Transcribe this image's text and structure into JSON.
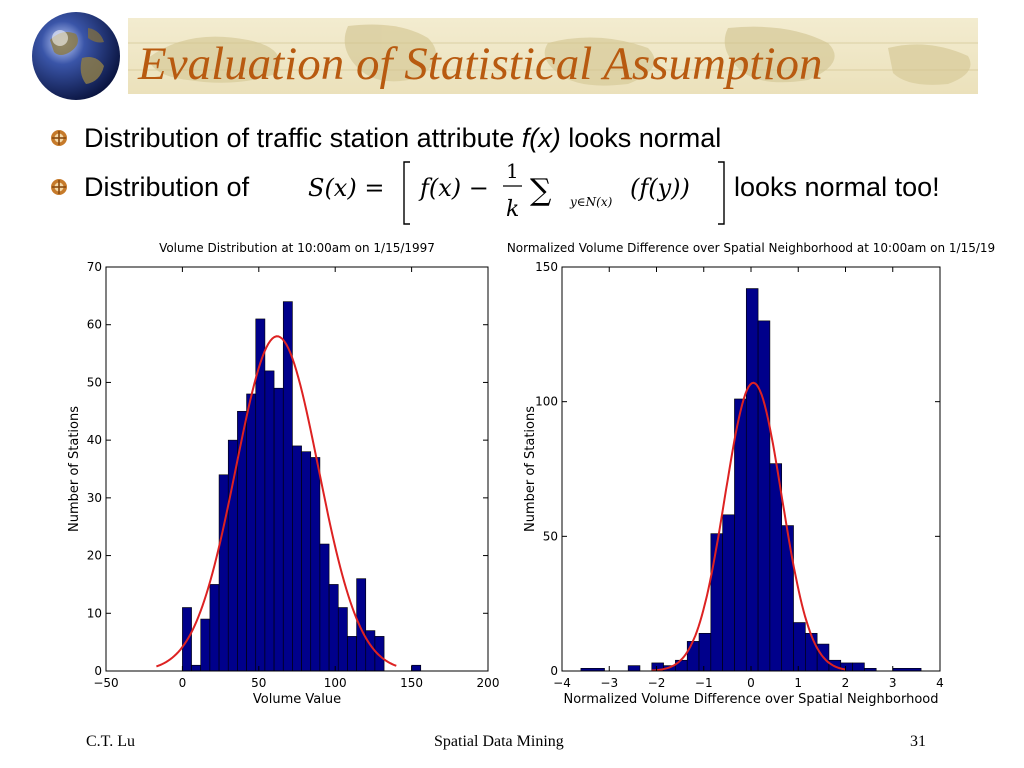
{
  "slide": {
    "title": "Evaluation of Statistical Assumption",
    "accent_color": "#b85a10",
    "bullets": [
      {
        "prefix": "Distribution of traffic station attribute ",
        "italic": "f(x)",
        "suffix": " looks normal"
      },
      {
        "prefix": "Distribution of",
        "suffix": "looks normal too!"
      }
    ],
    "formula": {
      "lhs": "S(x) =",
      "fx": "f(x) −",
      "frac_num": "1",
      "frac_den": "k",
      "sum": "∑",
      "subscript": "y∈N(x)",
      "term": "(f(y))"
    },
    "footer": {
      "author": "C.T. Lu",
      "center": "Spatial Data Mining",
      "page": "31"
    },
    "icons": [
      "globe-icon",
      "bullet-icon"
    ]
  },
  "chart_data": [
    {
      "type": "bar",
      "title": "Volume Distribution at 10:00am on 1/15/1997",
      "xlabel": "Volume Value",
      "ylabel": "Number of Stations",
      "xlim": [
        -50,
        200
      ],
      "ylim": [
        0,
        70
      ],
      "xticks": [
        -50,
        0,
        50,
        100,
        150,
        200
      ],
      "yticks": [
        0,
        10,
        20,
        30,
        40,
        50,
        60,
        70
      ],
      "bar_color": "#00008b",
      "curve_color": "#dd2222",
      "bins": [
        {
          "x0": 0,
          "x1": 6,
          "count": 11
        },
        {
          "x0": 6,
          "x1": 12,
          "count": 1
        },
        {
          "x0": 12,
          "x1": 18,
          "count": 9
        },
        {
          "x0": 18,
          "x1": 24,
          "count": 15
        },
        {
          "x0": 24,
          "x1": 30,
          "count": 34
        },
        {
          "x0": 30,
          "x1": 36,
          "count": 40
        },
        {
          "x0": 36,
          "x1": 42,
          "count": 45
        },
        {
          "x0": 42,
          "x1": 48,
          "count": 48
        },
        {
          "x0": 48,
          "x1": 54,
          "count": 61
        },
        {
          "x0": 54,
          "x1": 60,
          "count": 52
        },
        {
          "x0": 60,
          "x1": 66,
          "count": 49
        },
        {
          "x0": 66,
          "x1": 72,
          "count": 64
        },
        {
          "x0": 72,
          "x1": 78,
          "count": 39
        },
        {
          "x0": 78,
          "x1": 84,
          "count": 38
        },
        {
          "x0": 84,
          "x1": 90,
          "count": 37
        },
        {
          "x0": 90,
          "x1": 96,
          "count": 22
        },
        {
          "x0": 96,
          "x1": 102,
          "count": 15
        },
        {
          "x0": 102,
          "x1": 108,
          "count": 11
        },
        {
          "x0": 108,
          "x1": 114,
          "count": 6
        },
        {
          "x0": 114,
          "x1": 120,
          "count": 16
        },
        {
          "x0": 120,
          "x1": 126,
          "count": 7
        },
        {
          "x0": 126,
          "x1": 132,
          "count": 6
        },
        {
          "x0": 150,
          "x1": 156,
          "count": 1
        }
      ],
      "normal_fit": {
        "mean": 62,
        "sd": 27,
        "peak": 58,
        "range": [
          -17,
          140
        ]
      }
    },
    {
      "type": "bar",
      "title": "Normalized Volume Difference over Spatial Neighborhood at 10:00am on 1/15/19",
      "xlabel": "Normalized Volume Difference over Spatial Neighborhood",
      "ylabel": "Number of Stations",
      "xlim": [
        -4,
        4
      ],
      "ylim": [
        0,
        150
      ],
      "xticks": [
        -4,
        -3,
        -2,
        -1,
        0,
        1,
        2,
        3,
        4
      ],
      "yticks": [
        0,
        50,
        100,
        150
      ],
      "bar_color": "#00008b",
      "curve_color": "#dd2222",
      "bins": [
        {
          "x0": -3.6,
          "x1": -3.1,
          "count": 1
        },
        {
          "x0": -2.6,
          "x1": -2.35,
          "count": 2
        },
        {
          "x0": -2.1,
          "x1": -1.85,
          "count": 3
        },
        {
          "x0": -1.85,
          "x1": -1.6,
          "count": 2
        },
        {
          "x0": -1.6,
          "x1": -1.35,
          "count": 4
        },
        {
          "x0": -1.35,
          "x1": -1.1,
          "count": 11
        },
        {
          "x0": -1.1,
          "x1": -0.85,
          "count": 14
        },
        {
          "x0": -0.85,
          "x1": -0.6,
          "count": 51
        },
        {
          "x0": -0.6,
          "x1": -0.35,
          "count": 58
        },
        {
          "x0": -0.35,
          "x1": -0.1,
          "count": 101
        },
        {
          "x0": -0.1,
          "x1": 0.15,
          "count": 142
        },
        {
          "x0": 0.15,
          "x1": 0.4,
          "count": 130
        },
        {
          "x0": 0.4,
          "x1": 0.65,
          "count": 77
        },
        {
          "x0": 0.65,
          "x1": 0.9,
          "count": 54
        },
        {
          "x0": 0.9,
          "x1": 1.15,
          "count": 18
        },
        {
          "x0": 1.15,
          "x1": 1.4,
          "count": 14
        },
        {
          "x0": 1.4,
          "x1": 1.65,
          "count": 10
        },
        {
          "x0": 1.65,
          "x1": 1.9,
          "count": 4
        },
        {
          "x0": 1.9,
          "x1": 2.15,
          "count": 3
        },
        {
          "x0": 2.15,
          "x1": 2.4,
          "count": 3
        },
        {
          "x0": 2.4,
          "x1": 2.65,
          "count": 1
        },
        {
          "x0": 3.0,
          "x1": 3.6,
          "count": 1
        }
      ],
      "normal_fit": {
        "mean": 0.05,
        "sd": 0.6,
        "peak": 107,
        "range": [
          -2.1,
          2.0
        ]
      }
    }
  ]
}
